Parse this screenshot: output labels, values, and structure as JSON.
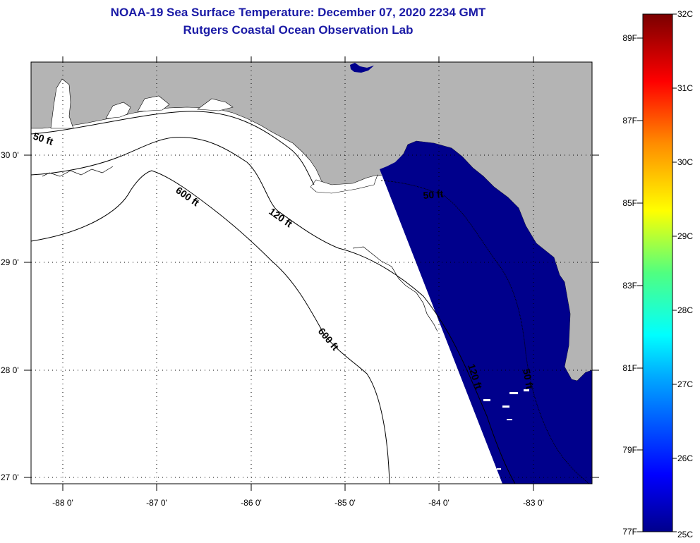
{
  "header": {
    "title": "NOAA-19 Sea Surface Temperature:  December 07, 2020 2234 GMT",
    "subtitle": "Rutgers Coastal Ocean Observation Lab"
  },
  "map": {
    "lon_labels": [
      "-88 0'",
      "-87 0'",
      "-86 0'",
      "-85 0'",
      "-84 0'",
      "-83 0'"
    ],
    "lat_labels": [
      "30 0'",
      "29 0'",
      "28 0'",
      "27 0'"
    ],
    "contour_labels": [
      "50 ft",
      "600 ft",
      "120 ft",
      "50 ft",
      "600 ft",
      "120 ft",
      "50 ft"
    ],
    "colors": {
      "land": "#b4b4b4",
      "water_sst": "#00008c",
      "no_data": "#ffffff",
      "grid": "#000000"
    }
  },
  "colorbar": {
    "fahrenheit_labels": [
      "89F",
      "87F",
      "85F",
      "83F",
      "81F",
      "79F",
      "77F"
    ],
    "celsius_labels": [
      "32C",
      "31C",
      "30C",
      "29C",
      "28C",
      "27C",
      "26C",
      "25C"
    ],
    "min_c": 25,
    "max_c": 32
  }
}
